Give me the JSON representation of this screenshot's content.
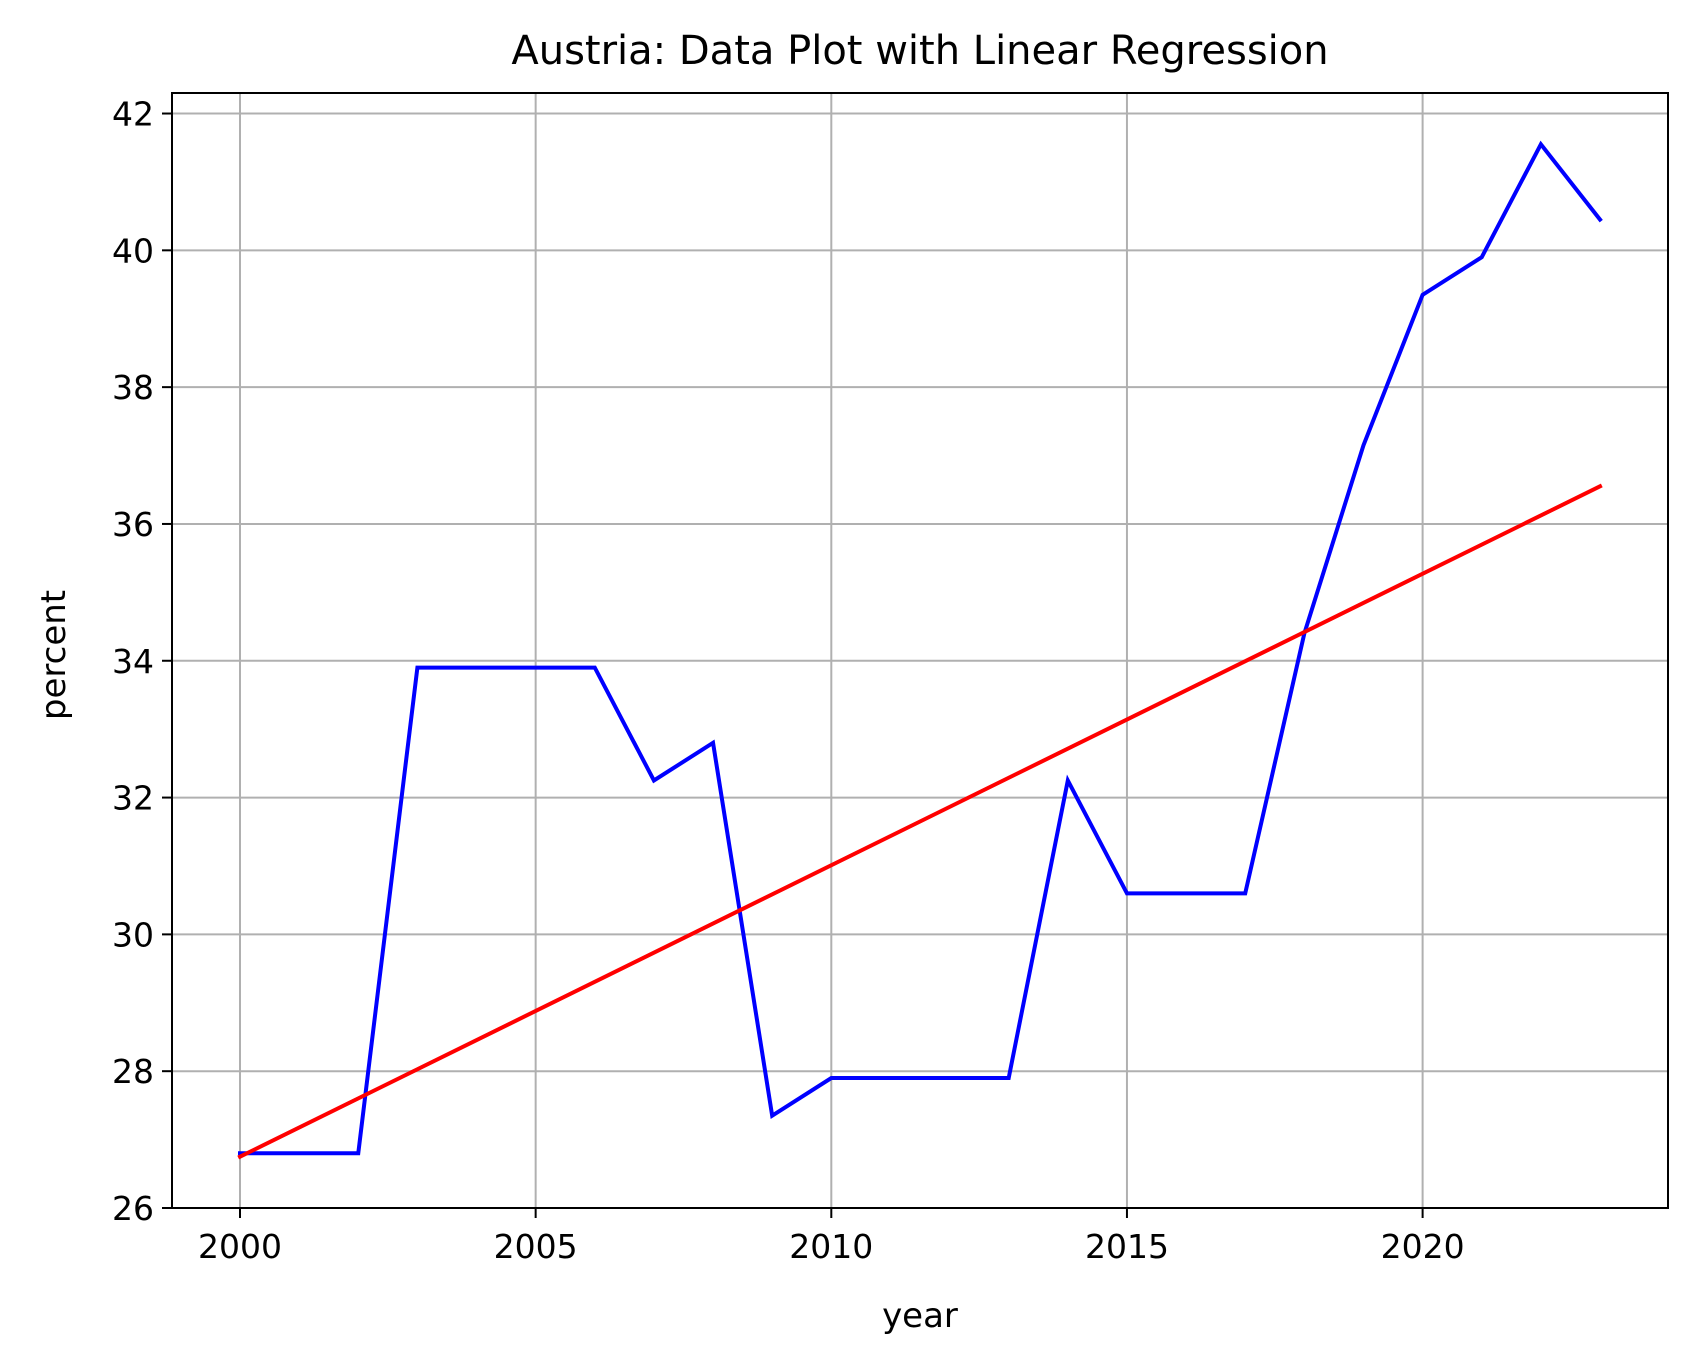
{
  "chart_data": {
    "type": "line",
    "title": "Austria: Data Plot with Linear Regression",
    "xlabel": "year",
    "ylabel": "percent",
    "xlim": [
      1998.85,
      2024.15
    ],
    "ylim": [
      26,
      42.3
    ],
    "x_ticks": [
      2000,
      2005,
      2010,
      2015,
      2020
    ],
    "y_ticks": [
      26,
      28,
      30,
      32,
      34,
      36,
      38,
      40,
      42
    ],
    "grid": true,
    "series": [
      {
        "color": "#0000ff",
        "x": [
          2000,
          2001,
          2002,
          2003,
          2004,
          2005,
          2006,
          2007,
          2008,
          2009,
          2010,
          2011,
          2012,
          2013,
          2014,
          2015,
          2016,
          2017,
          2018,
          2019,
          2020,
          2021,
          2022,
          2023
        ],
        "y": [
          26.8,
          26.8,
          26.8,
          33.9,
          33.9,
          33.9,
          33.9,
          32.25,
          32.8,
          27.35,
          27.9,
          27.9,
          27.9,
          27.9,
          32.25,
          30.6,
          30.6,
          30.6,
          34.4,
          37.15,
          39.35,
          39.9,
          41.55,
          40.45
        ]
      },
      {
        "color": "#ff0000",
        "x": [
          2000,
          2023
        ],
        "y": [
          26.75,
          36.55
        ]
      }
    ]
  }
}
